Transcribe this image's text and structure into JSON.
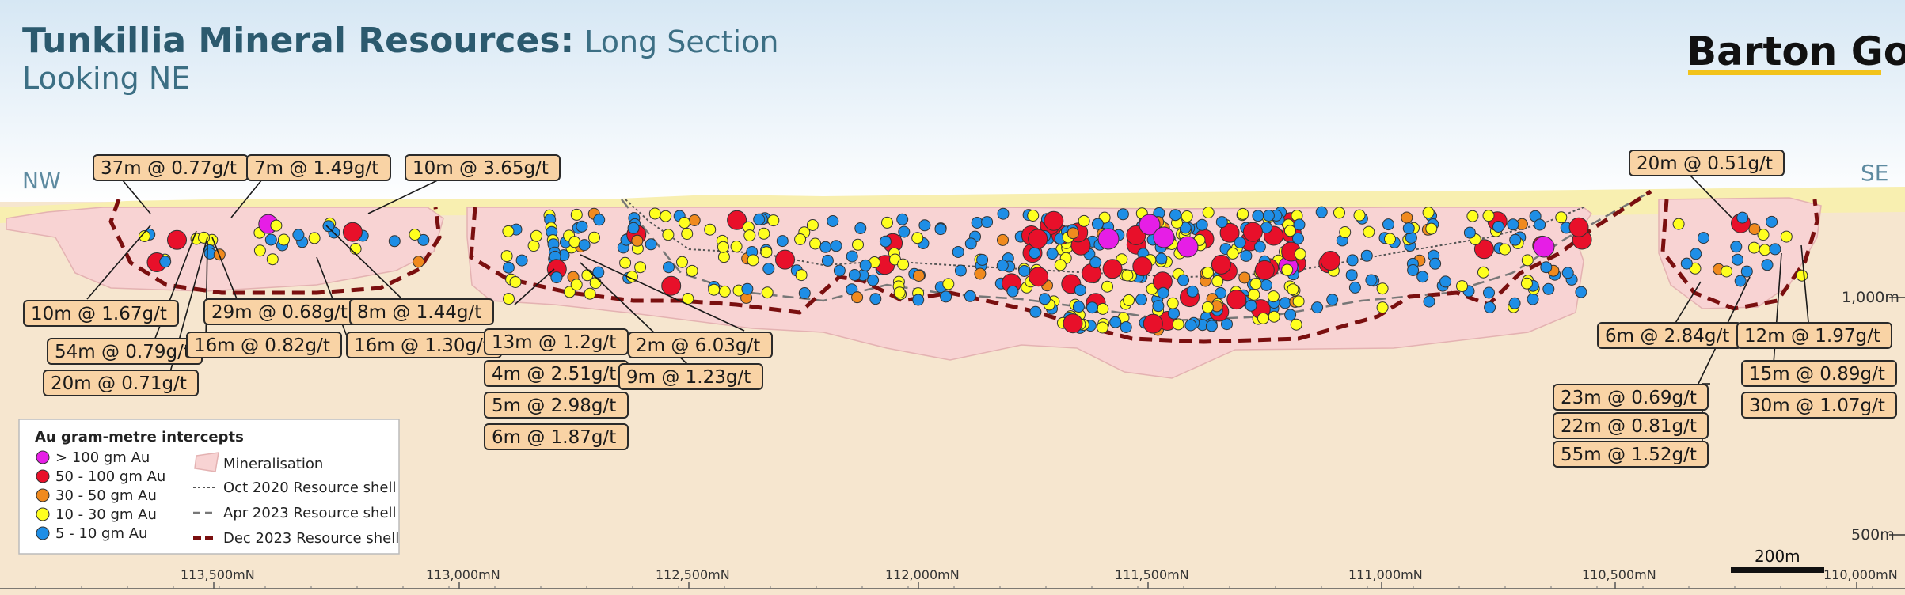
{
  "title": "Tunkillia Mineral Resources:",
  "title_suffix": "Long Section",
  "subtitle": "Looking NE",
  "logo": "Barton Gold",
  "directions": {
    "left": "NW",
    "right": "SE"
  },
  "elevation_labels": [
    "1,000m",
    "500m"
  ],
  "scale_bar": "200m",
  "northings": [
    "113,500mN",
    "113,000mN",
    "112,500mN",
    "112,000mN",
    "111,500mN",
    "111,000mN",
    "110,500mN",
    "110,000mN"
  ],
  "legend": {
    "title": "Au gram-metre intercepts",
    "grade_classes": [
      {
        "label": "> 100 gm Au",
        "color": "#e61ee6"
      },
      {
        "label": "50 - 100 gm Au",
        "color": "#e8102a"
      },
      {
        "label": "30 - 50 gm Au",
        "color": "#f08a1e"
      },
      {
        "label": "10 - 30 gm Au",
        "color": "#ffff1e"
      },
      {
        "label": "5 - 10 gm Au",
        "color": "#1e8ee6"
      }
    ],
    "mineralisation": "Mineralisation",
    "shells": [
      {
        "label": "Oct 2020 Resource shell",
        "style": "dotted"
      },
      {
        "label": "Apr 2023 Resource shell",
        "style": "dashed"
      },
      {
        "label": "Dec 2023 Resource shell",
        "style": "thick-dashed"
      }
    ]
  },
  "intercepts": [
    "37m @ 0.77g/t",
    "7m @ 1.49g/t",
    "10m @ 3.65g/t",
    "10m @ 1.67g/t",
    "54m @ 0.79g/t",
    "20m @ 0.71g/t",
    "16m @ 0.82g/t",
    "29m @ 0.68g/t",
    "8m @ 1.44g/t",
    "16m @ 1.30g/t",
    "13m @ 1.2g/t",
    "4m @ 2.51g/t",
    "5m @ 2.98g/t",
    "6m @ 1.87g/t",
    "2m @ 6.03g/t",
    "9m @ 1.23g/t",
    "20m @ 0.51g/t",
    "6m @ 2.84g/t",
    "12m @ 1.97g/t",
    "15m @ 0.89g/t",
    "30m @ 1.07g/t",
    "23m @ 0.69g/t",
    "22m @ 0.81g/t",
    "55m @ 1.52g/t"
  ],
  "palette": {
    "sky_top": "#d9e9f5",
    "ground": "#f6e6cf",
    "surface_sand": "#f8efb0",
    "mineralisation": "#f8d3d3",
    "shell": "#7a0f0f"
  }
}
